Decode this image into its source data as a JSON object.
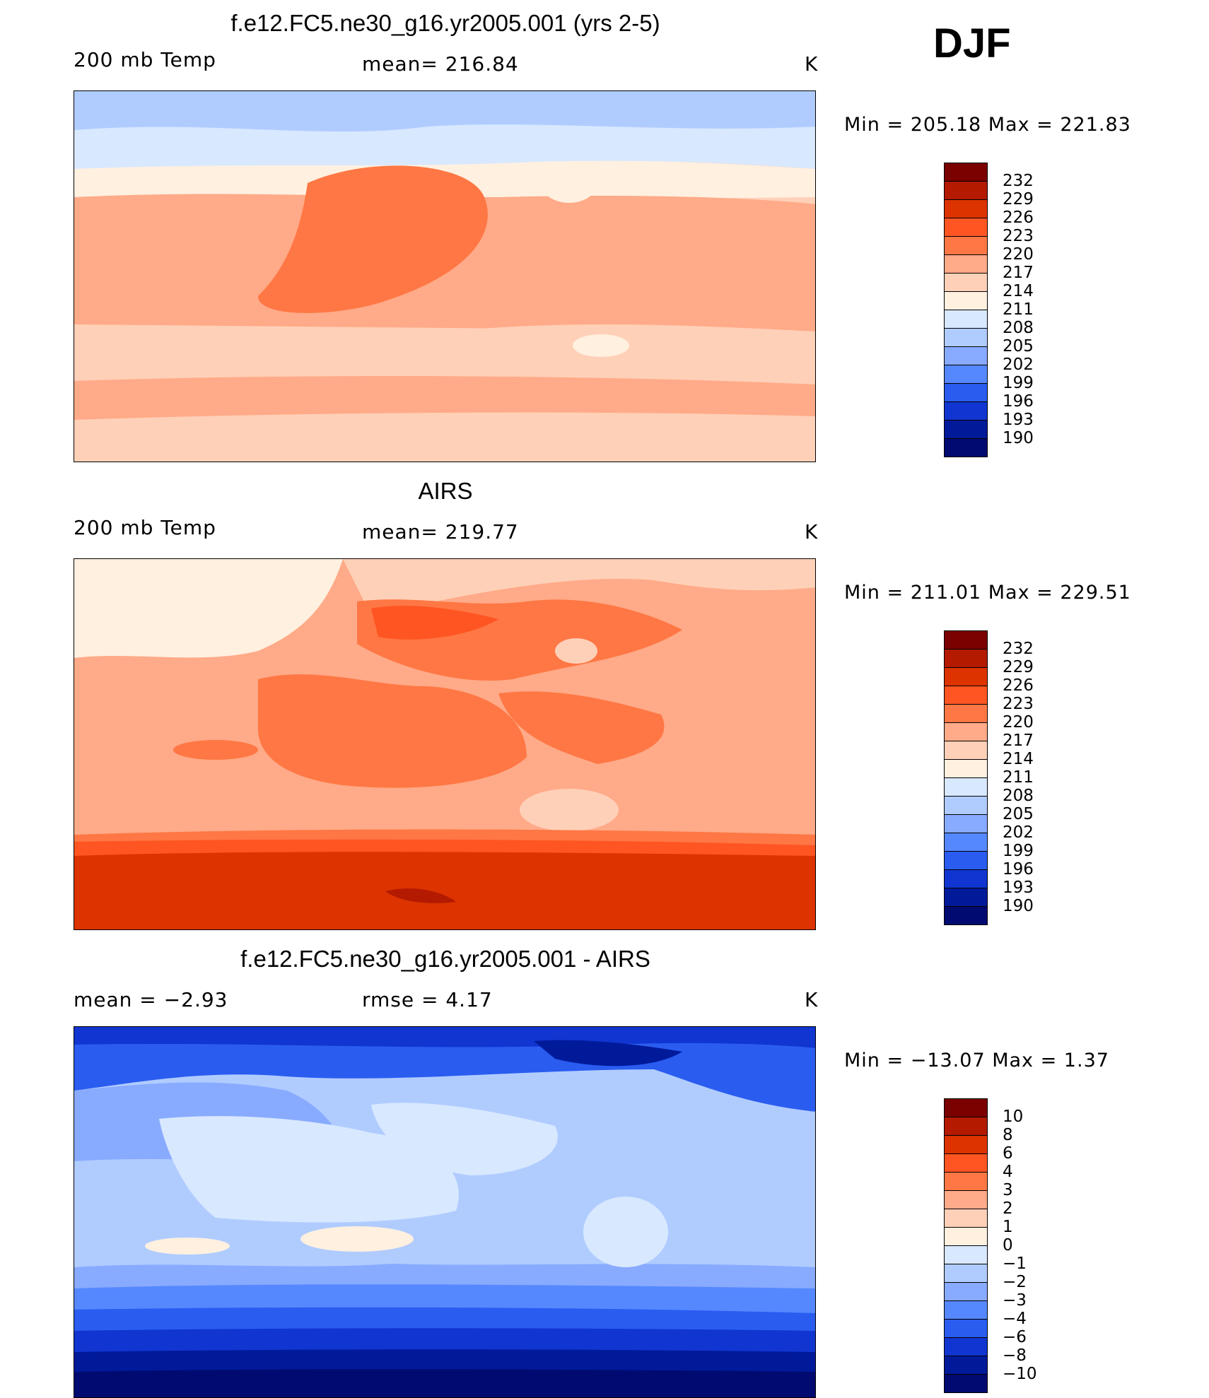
{
  "season": "DJF",
  "panels": [
    {
      "title": "f.e12.FC5.ne30_g16.yr2005.001 (yrs 2-5)",
      "left_label": "200 mb Temp",
      "center_label": "mean=  216.84",
      "units": "K",
      "minmax": "Min  =  205.18  Max  =  221.83",
      "colorbar": {
        "levels": [
          "232",
          "229",
          "226",
          "223",
          "220",
          "217",
          "214",
          "211",
          "208",
          "205",
          "202",
          "199",
          "196",
          "193",
          "190"
        ],
        "colors": [
          "#7b0000",
          "#b31a00",
          "#dd3300",
          "#ff5522",
          "#ff7744",
          "#ffaa88",
          "#ffd0b8",
          "#fff0e0",
          "#d8e8ff",
          "#b0ccff",
          "#88aaff",
          "#5588ff",
          "#2a5cf0",
          "#1035d0",
          "#001a9a",
          "#000a70"
        ]
      }
    },
    {
      "title": "AIRS",
      "left_label": "200 mb Temp",
      "center_label": "mean=  219.77",
      "units": "K",
      "minmax": "Min  =  211.01  Max  =  229.51",
      "colorbar": {
        "levels": [
          "232",
          "229",
          "226",
          "223",
          "220",
          "217",
          "214",
          "211",
          "208",
          "205",
          "202",
          "199",
          "196",
          "193",
          "190"
        ],
        "colors": [
          "#7b0000",
          "#b31a00",
          "#dd3300",
          "#ff5522",
          "#ff7744",
          "#ffaa88",
          "#ffd0b8",
          "#fff0e0",
          "#d8e8ff",
          "#b0ccff",
          "#88aaff",
          "#5588ff",
          "#2a5cf0",
          "#1035d0",
          "#001a9a",
          "#000a70"
        ]
      }
    },
    {
      "title": "f.e12.FC5.ne30_g16.yr2005.001 - AIRS",
      "left_label": "mean =     −2.93",
      "center_label": "rmse =      4.17",
      "units": "K",
      "minmax": "Min  =  −13.07  Max  =       1.37",
      "colorbar": {
        "levels": [
          "10",
          "8",
          "6",
          "4",
          "3",
          "2",
          "1",
          "0",
          "−1",
          "−2",
          "−3",
          "−4",
          "−6",
          "−8",
          "−10"
        ],
        "colors": [
          "#7b0000",
          "#b31a00",
          "#dd3300",
          "#ff5522",
          "#ff7744",
          "#ffaa88",
          "#ffd0b8",
          "#fff0e0",
          "#d8e8ff",
          "#b0ccff",
          "#88aaff",
          "#5588ff",
          "#2a5cf0",
          "#1035d0",
          "#001a9a",
          "#000a70"
        ]
      }
    }
  ]
}
